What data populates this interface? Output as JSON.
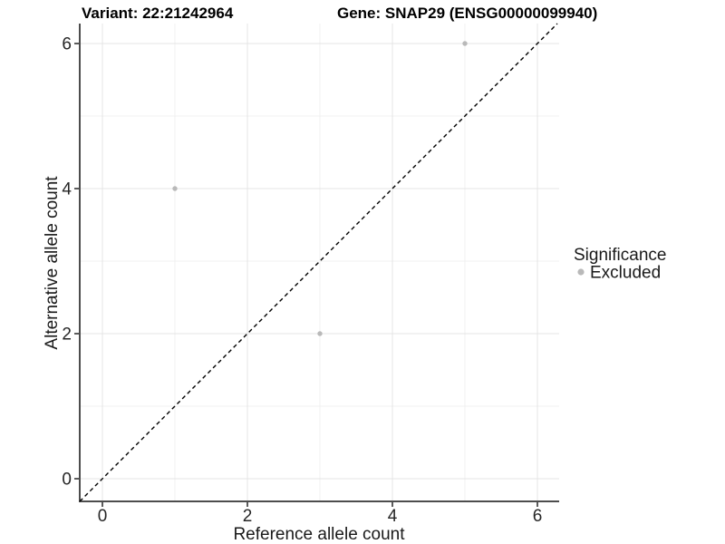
{
  "header": {
    "variant_title": "Variant: 22:21242964",
    "gene_title": "Gene: SNAP29 (ENSG00000099940)"
  },
  "axes": {
    "x_label": "Reference allele count",
    "y_label": "Alternative allele count"
  },
  "legend": {
    "title": "Significance",
    "items": [
      {
        "label": "Excluded",
        "color": "#b9b9b9"
      }
    ]
  },
  "chart_data": {
    "type": "scatter",
    "title": "Variant: 22:21242964 | Gene: SNAP29 (ENSG00000099940)",
    "xlabel": "Reference allele count",
    "ylabel": "Alternative allele count",
    "xlim": [
      -0.31,
      6.3
    ],
    "ylim": [
      -0.31,
      6.28
    ],
    "x_breaks": [
      0,
      2,
      4,
      6
    ],
    "y_breaks": [
      0,
      2,
      4,
      6
    ],
    "x_minor_breaks": [
      1,
      3,
      5
    ],
    "y_minor_breaks": [
      1,
      3,
      5
    ],
    "grid": true,
    "legend_position": "right",
    "series": [
      {
        "name": "Excluded",
        "color": "#b9b9b9",
        "points": [
          [
            1,
            4
          ],
          [
            3,
            2
          ],
          [
            5,
            6
          ]
        ]
      }
    ],
    "identity_line": {
      "slope": 1,
      "intercept": 0,
      "style": "dashed",
      "color": "#000000"
    },
    "colors": {
      "background": "#ffffff",
      "grid_major": "#e4e4e4",
      "grid_minor": "#f0f0f0",
      "axis": "#4d4d4d",
      "tick": "#333333",
      "text": "#262626"
    }
  }
}
